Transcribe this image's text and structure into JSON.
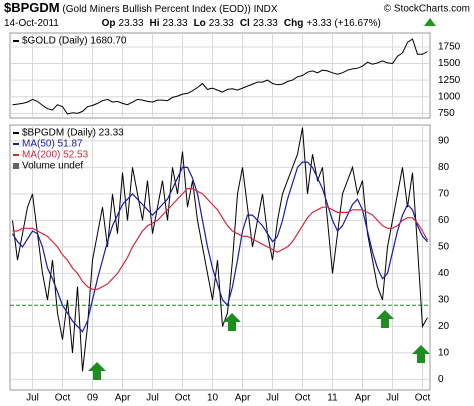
{
  "header": {
    "symbol": "$BPGDM",
    "name": "(Gold Miners Bullish Percent Index (EOD))",
    "exchange": "INDX",
    "credit": "© StockCharts.com",
    "date": "14-Oct-2011",
    "quote": [
      {
        "label": "Op",
        "value": "23.33"
      },
      {
        "label": "Hi",
        "value": "23.33"
      },
      {
        "label": "Lo",
        "value": "23.33"
      },
      {
        "label": "Cl",
        "value": "23.33"
      },
      {
        "label": "Chg",
        "value": "+3.33 (+16.67%)"
      }
    ]
  },
  "chart_data": [
    {
      "type": "line",
      "ylim": [
        680,
        1960
      ],
      "yticks": [
        750,
        1000,
        1250,
        1500,
        1750
      ],
      "grid": true,
      "series": [
        {
          "name": "$GOLD (Daily) 1680.70",
          "color": "#000000",
          "values": [
            880,
            890,
            900,
            920,
            960,
            930,
            870,
            820,
            800,
            880,
            850,
            740,
            760,
            750,
            780,
            850,
            870,
            900,
            940,
            960,
            920,
            930,
            900,
            880,
            920,
            960,
            950,
            930,
            920,
            950,
            950,
            940,
            990,
            1010,
            1040,
            1050,
            1090,
            1140,
            1200,
            1110,
            1130,
            1100,
            1070,
            1110,
            1120,
            1100,
            1130,
            1160,
            1190,
            1220,
            1220,
            1250,
            1200,
            1180,
            1190,
            1230,
            1250,
            1300,
            1320,
            1370,
            1390,
            1360,
            1400,
            1390,
            1360,
            1340,
            1360,
            1400,
            1420,
            1430,
            1460,
            1520,
            1490,
            1510,
            1540,
            1510,
            1500,
            1610,
            1660,
            1820,
            1870,
            1640,
            1640,
            1680.7
          ]
        }
      ]
    },
    {
      "type": "line",
      "ylim": [
        -4,
        96
      ],
      "yticks": [
        0,
        10,
        20,
        30,
        40,
        50,
        60,
        70,
        80,
        90
      ],
      "grid": true,
      "reference_line": {
        "value": 28,
        "color": "#228b22"
      },
      "legend_texts": [
        "Volume undef"
      ],
      "categories": [
        null,
        null,
        null,
        null,
        "Jul",
        null,
        null,
        null,
        null,
        null,
        "Oct",
        null,
        null,
        null,
        null,
        null,
        "09",
        null,
        null,
        null,
        null,
        null,
        "Apr",
        null,
        null,
        null,
        null,
        null,
        "Jul",
        null,
        null,
        null,
        null,
        null,
        "Oct",
        null,
        null,
        null,
        null,
        null,
        "10",
        null,
        null,
        null,
        null,
        null,
        "Apr",
        null,
        null,
        null,
        null,
        null,
        "Jul",
        null,
        null,
        null,
        null,
        null,
        "Oct",
        null,
        null,
        null,
        null,
        null,
        "11",
        null,
        null,
        null,
        null,
        null,
        "Apr",
        null,
        null,
        null,
        null,
        null,
        "Jul",
        null,
        null,
        null,
        null,
        null,
        "Oct",
        null
      ],
      "series": [
        {
          "name": "$BPGDM (Daily) 23.33",
          "color": "#000000",
          "values": [
            60,
            45,
            55,
            65,
            70,
            55,
            40,
            30,
            45,
            25,
            15,
            30,
            10,
            35,
            3,
            20,
            45,
            55,
            65,
            50,
            70,
            55,
            78,
            60,
            80,
            70,
            60,
            75,
            55,
            65,
            75,
            60,
            80,
            70,
            86,
            65,
            75,
            60,
            50,
            40,
            30,
            45,
            20,
            25,
            45,
            70,
            80,
            65,
            50,
            60,
            70,
            55,
            45,
            60,
            70,
            75,
            80,
            85,
            95,
            70,
            85,
            75,
            80,
            60,
            40,
            55,
            70,
            75,
            80,
            70,
            75,
            55,
            45,
            35,
            30,
            50,
            60,
            70,
            80,
            65,
            78,
            50,
            20,
            23.33
          ]
        },
        {
          "name": "MA(50) 51.87",
          "color": "#1a1aa6",
          "values": [
            55,
            52,
            50,
            53,
            56,
            55,
            50,
            42,
            38,
            33,
            28,
            25,
            22,
            20,
            18,
            22,
            30,
            38,
            45,
            52,
            58,
            62,
            66,
            68,
            70,
            68,
            66,
            64,
            62,
            64,
            66,
            68,
            72,
            76,
            80,
            80,
            76,
            70,
            60,
            50,
            42,
            36,
            30,
            28,
            35,
            45,
            56,
            62,
            62,
            60,
            58,
            55,
            52,
            54,
            60,
            68,
            74,
            80,
            82,
            82,
            80,
            76,
            72,
            66,
            60,
            56,
            58,
            62,
            66,
            68,
            64,
            56,
            48,
            42,
            38,
            40,
            48,
            56,
            62,
            66,
            64,
            58,
            54,
            51.87
          ]
        },
        {
          "name": "MA(200) 52.53",
          "color": "#d6283b",
          "values": [
            56,
            56,
            57,
            57,
            57,
            56,
            55,
            54,
            52,
            50,
            47,
            45,
            42,
            40,
            37,
            35,
            34,
            34,
            35,
            36,
            38,
            40,
            43,
            46,
            50,
            53,
            56,
            58,
            59,
            60,
            62,
            64,
            66,
            68,
            70,
            72,
            72,
            71,
            70,
            68,
            66,
            64,
            61,
            58,
            56,
            55,
            54,
            54,
            53,
            52,
            51,
            50,
            49,
            48,
            49,
            50,
            52,
            55,
            58,
            61,
            63,
            64,
            65,
            65,
            64,
            63,
            63,
            63,
            64,
            64,
            64,
            63,
            62,
            60,
            58,
            57,
            57,
            58,
            60,
            61,
            61,
            59,
            56,
            52.53
          ]
        }
      ]
    }
  ]
}
